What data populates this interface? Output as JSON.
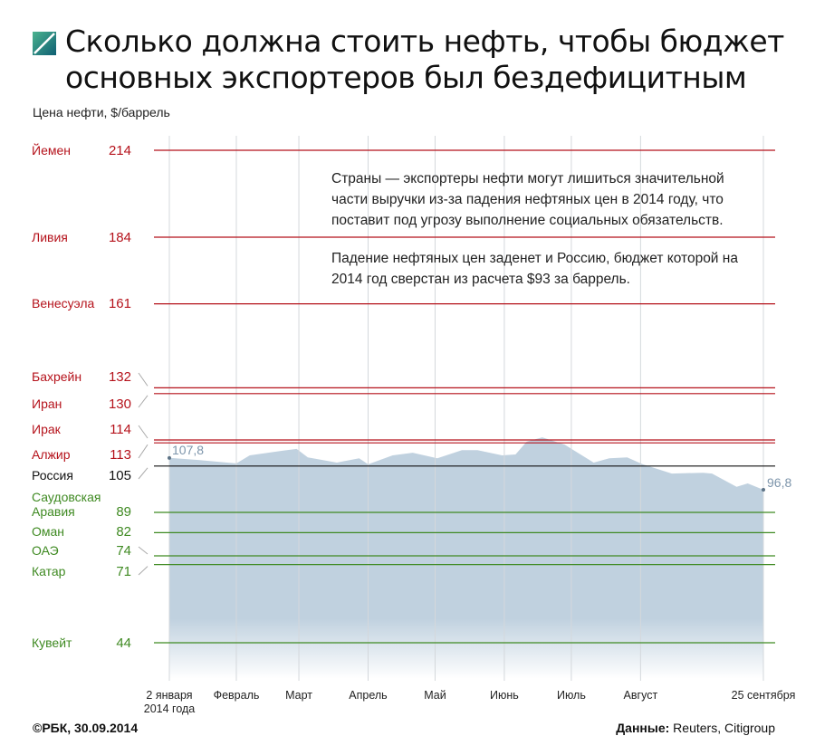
{
  "header": {
    "title": "Сколько должна стоить нефть, чтобы бюджет основных экспортеров был бездефицитным",
    "subtitle": "Цена нефти, $/баррель",
    "logo_icon": "rbc-diagonal-square-icon"
  },
  "annotation": {
    "paragraph1": "Страны — экспортеры нефти могут лишиться значительной части выручки из-за падения нефтяных цен в 2014 году, что поставит под угрозу выполнение социальных обязательств.",
    "paragraph2": "Падение нефтяных цен заденет и Россию, бюджет которой на 2014 год сверстан из расчета $93 за баррель."
  },
  "footer": {
    "credit": "©РБК, 30.09.2014",
    "source_label": "Данные:",
    "source_value": "Reuters, Citigroup"
  },
  "colors": {
    "deficit": "#b5121b",
    "russia": "#111111",
    "surplus": "#3f8a22",
    "price_area": "#c0d1df",
    "price_label": "#7d95ab"
  },
  "chart_data": {
    "type": "area",
    "title": "Сколько должна стоить нефть, чтобы бюджет основных экспортеров был бездефицитным",
    "ylabel": "Цена нефти, $/баррель",
    "ylim": [
      44,
      214
    ],
    "grid": "vertical monthly",
    "x_tick_labels": [
      "2 января 2014 года",
      "Февраль",
      "Март",
      "Апрель",
      "Май",
      "Июнь",
      "Июль",
      "Август",
      "25 сентября"
    ],
    "x_tick_dates": [
      "2014-01-02",
      "2014-02-01",
      "2014-03-01",
      "2014-04-01",
      "2014-05-01",
      "2014-06-01",
      "2014-07-01",
      "2014-08-01",
      "2014-09-25"
    ],
    "price_series": {
      "dates": [
        "2014-01-02",
        "2014-01-15",
        "2014-02-01",
        "2014-02-07",
        "2014-02-22",
        "2014-02-28",
        "2014-03-05",
        "2014-03-18",
        "2014-03-28",
        "2014-04-01",
        "2014-04-12",
        "2014-04-21",
        "2014-05-02",
        "2014-05-13",
        "2014-05-20",
        "2014-05-31",
        "2014-06-06",
        "2014-06-11",
        "2014-06-18",
        "2014-06-28",
        "2014-07-11",
        "2014-07-18",
        "2014-07-26",
        "2014-08-02",
        "2014-08-15",
        "2014-08-29",
        "2014-09-02",
        "2014-09-13",
        "2014-09-18",
        "2014-09-25"
      ],
      "values": [
        107.8,
        107.1,
        105.9,
        108.7,
        110.3,
        110.9,
        108.0,
        106.2,
        107.7,
        105.6,
        108.7,
        109.6,
        107.7,
        110.5,
        110.5,
        108.7,
        109.0,
        113.4,
        114.9,
        112.4,
        106.2,
        107.7,
        108.0,
        105.6,
        102.4,
        102.7,
        102.4,
        97.8,
        99.0,
        96.8
      ],
      "start_label": "107,8",
      "end_label": "96,8"
    },
    "breakeven": [
      {
        "country": "Йемен",
        "value": 214,
        "label": "214",
        "group": "deficit"
      },
      {
        "country": "Ливия",
        "value": 184,
        "label": "184",
        "group": "deficit"
      },
      {
        "country": "Венесуэла",
        "value": 161,
        "label": "161",
        "group": "deficit"
      },
      {
        "country": "Бахрейн",
        "value": 132,
        "label": "132",
        "group": "deficit"
      },
      {
        "country": "Иран",
        "value": 130,
        "label": "130",
        "group": "deficit"
      },
      {
        "country": "Ирак",
        "value": 114,
        "label": "114",
        "group": "deficit"
      },
      {
        "country": "Алжир",
        "value": 113,
        "label": "113",
        "group": "deficit"
      },
      {
        "country": "Россия",
        "value": 105,
        "label": "105",
        "group": "russia"
      },
      {
        "country": "Саудовская Аравия",
        "value": 89,
        "label": "89",
        "group": "surplus"
      },
      {
        "country": "Оман",
        "value": 82,
        "label": "82",
        "group": "surplus"
      },
      {
        "country": "ОАЭ",
        "value": 74,
        "label": "74",
        "group": "surplus"
      },
      {
        "country": "Катар",
        "value": 71,
        "label": "71",
        "group": "surplus"
      },
      {
        "country": "Кувейт",
        "value": 44,
        "label": "44",
        "group": "surplus"
      }
    ]
  }
}
